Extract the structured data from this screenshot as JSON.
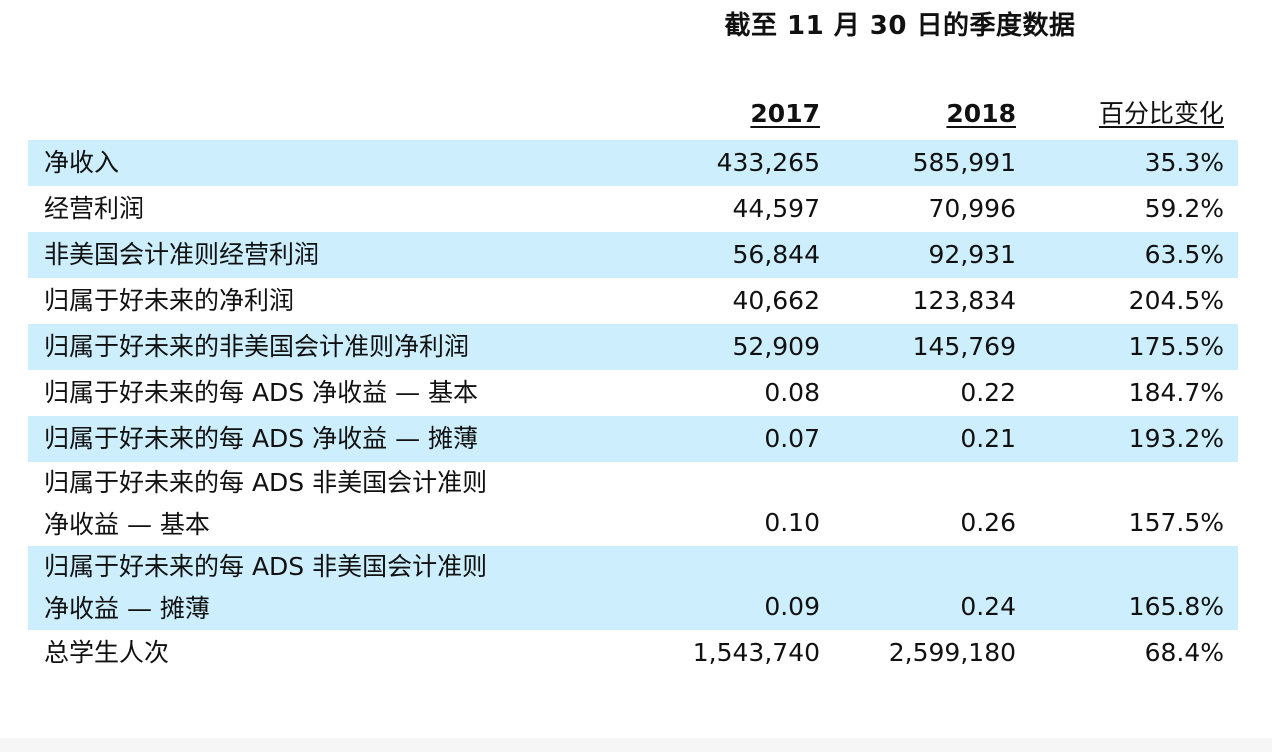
{
  "title": "截至 11 月 30 日的季度数据",
  "headers": {
    "y2017": "2017",
    "y2018": "2018",
    "pct": "百分比变化"
  },
  "rows": [
    {
      "label": "净收入",
      "v2017": "433,265",
      "v2018": "585,991",
      "pct": "35.3%"
    },
    {
      "label": "经营利润",
      "v2017": "44,597",
      "v2018": "70,996",
      "pct": "59.2%"
    },
    {
      "label": "非美国会计准则经营利润",
      "v2017": "56,844",
      "v2018": "92,931",
      "pct": "63.5%"
    },
    {
      "label": "归属于好未来的净利润",
      "v2017": "40,662",
      "v2018": "123,834",
      "pct": "204.5%"
    },
    {
      "label": "归属于好未来的非美国会计准则净利润",
      "v2017": "52,909",
      "v2018": "145,769",
      "pct": "175.5%"
    },
    {
      "label": "归属于好未来的每 ADS 净收益 — 基本",
      "v2017": "0.08",
      "v2018": "0.22",
      "pct": "184.7%"
    },
    {
      "label": "归属于好未来的每 ADS 净收益 — 摊薄",
      "v2017": "0.07",
      "v2018": "0.21",
      "pct": "193.2%"
    },
    {
      "label": "归属于好未来的每 ADS 非美国会计准则\n净收益 — 基本",
      "v2017": "0.10",
      "v2018": "0.26",
      "pct": "157.5%"
    },
    {
      "label": "归属于好未来的每 ADS 非美国会计准则\n净收益 — 摊薄",
      "v2017": "0.09",
      "v2018": "0.24",
      "pct": "165.8%"
    },
    {
      "label": "总学生人次",
      "v2017": "1,543,740",
      "v2018": "2,599,180",
      "pct": "68.4%"
    }
  ],
  "colors": {
    "shade": "#cdeefc",
    "text": "#111111"
  }
}
